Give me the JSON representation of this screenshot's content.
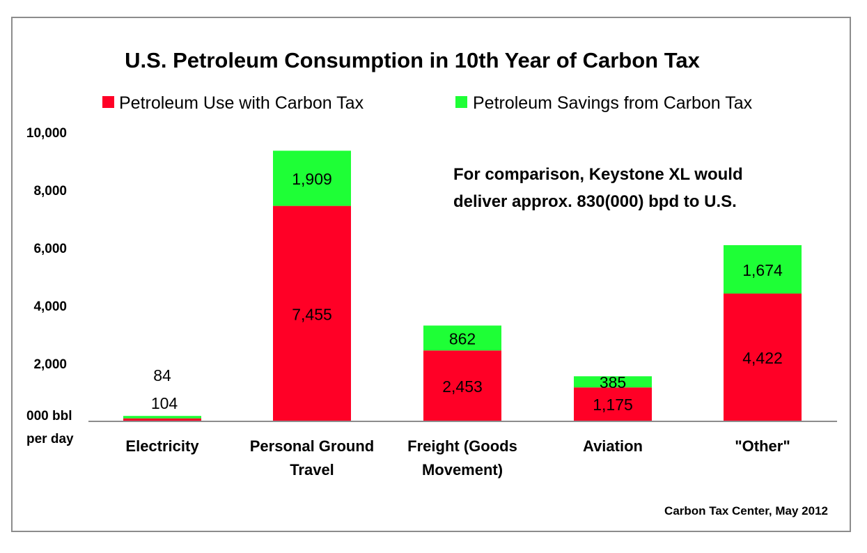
{
  "chart_data": {
    "type": "bar",
    "stacked": true,
    "title": "U.S. Petroleum Consumption in 10th Year of Carbon Tax",
    "ylabel": "000 bbl per day",
    "ylabel_lines": [
      "000 bbl",
      "per day"
    ],
    "ylim": [
      0,
      10000
    ],
    "yticks": [
      "10,000",
      "8,000",
      "6,000",
      "4,000",
      "2,000"
    ],
    "grid": false,
    "legend_position": "top",
    "categories": [
      "Electricity",
      "Personal Ground Travel",
      "Freight (Goods Movement)",
      "Aviation",
      "\"Other\""
    ],
    "category_lines": [
      [
        "Electricity"
      ],
      [
        "Personal Ground",
        "Travel"
      ],
      [
        "Freight (Goods",
        "Movement)"
      ],
      [
        "Aviation"
      ],
      [
        "\"Other\""
      ]
    ],
    "series": [
      {
        "name": "Petroleum Use with Carbon Tax",
        "color": "#ff0026",
        "values": [
          104,
          7455,
          2453,
          1175,
          4422
        ],
        "labels": [
          "104",
          "7,455",
          "2,453",
          "1,175",
          "4,422"
        ]
      },
      {
        "name": "Petroleum Savings from Carbon Tax",
        "color": "#1eff36",
        "values": [
          84,
          1909,
          862,
          385,
          1674
        ],
        "labels": [
          "84",
          "1,909",
          "862",
          "385",
          "1,674"
        ]
      }
    ],
    "annotation": [
      "For comparison, Keystone XL would",
      "deliver approx. 830(000) bpd to U.S."
    ],
    "source": "Carbon Tax Center, May 2012"
  }
}
